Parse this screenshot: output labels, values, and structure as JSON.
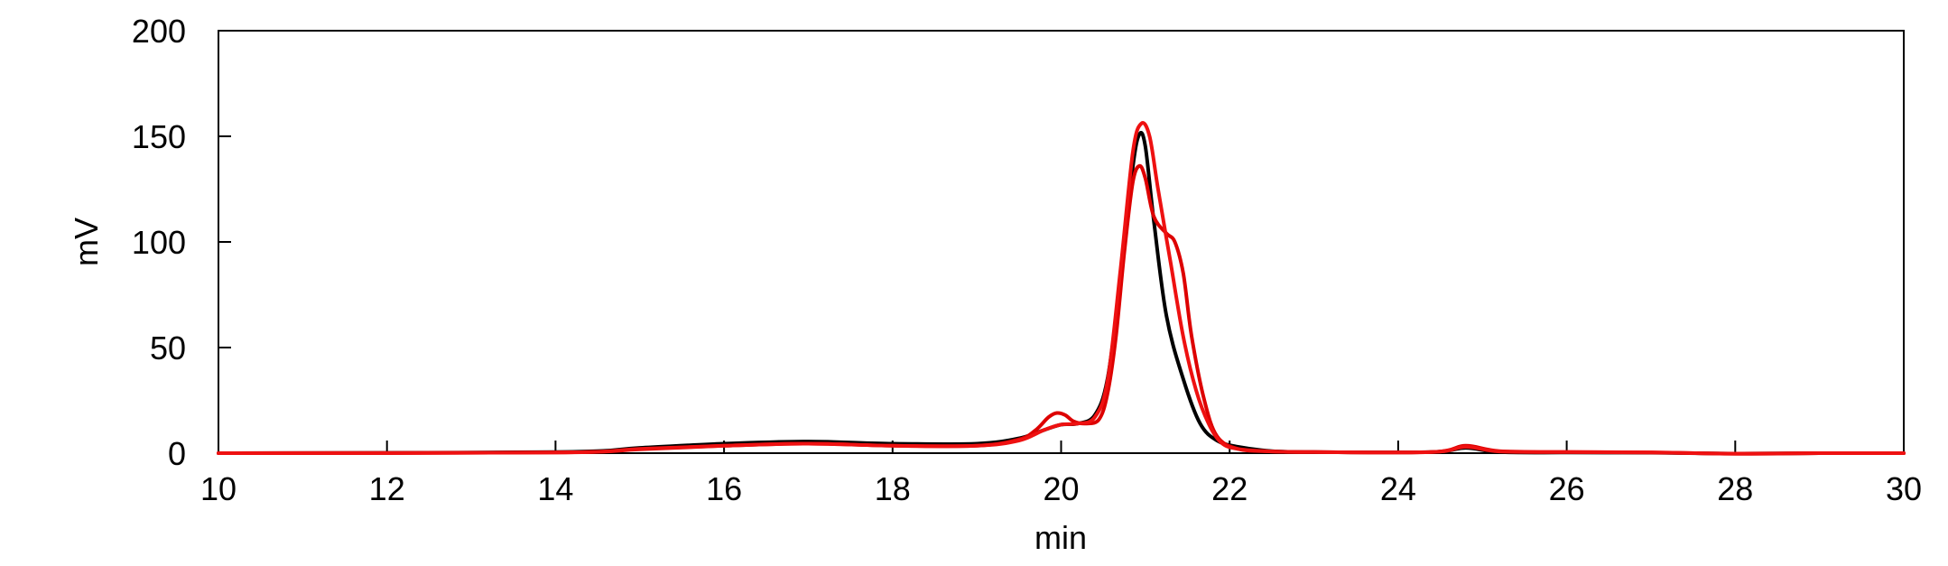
{
  "chart_data": {
    "type": "line",
    "xlabel": "min",
    "ylabel": "mV",
    "xlim": [
      10,
      30
    ],
    "ylim": [
      0,
      200
    ],
    "xticks": [
      10,
      12,
      14,
      16,
      18,
      20,
      22,
      24,
      26,
      28,
      30
    ],
    "yticks": [
      0,
      50,
      100,
      150,
      200
    ],
    "grid": false,
    "legend": "none",
    "series": [
      {
        "color": "#000000",
        "points": [
          [
            10,
            0
          ],
          [
            14,
            0.5
          ],
          [
            15,
            2.5
          ],
          [
            16,
            4.5
          ],
          [
            17,
            5.5
          ],
          [
            18,
            4.5
          ],
          [
            19,
            4.5
          ],
          [
            19.5,
            7
          ],
          [
            19.8,
            11
          ],
          [
            20,
            13.5
          ],
          [
            20.2,
            14
          ],
          [
            20.4,
            18
          ],
          [
            20.55,
            35
          ],
          [
            20.7,
            80
          ],
          [
            20.85,
            135
          ],
          [
            20.93,
            151
          ],
          [
            21.0,
            145
          ],
          [
            21.1,
            110
          ],
          [
            21.25,
            65
          ],
          [
            21.45,
            35
          ],
          [
            21.65,
            14
          ],
          [
            21.85,
            6
          ],
          [
            22.1,
            3
          ],
          [
            22.5,
            1
          ],
          [
            23,
            0.5
          ],
          [
            24.4,
            0.5
          ],
          [
            24.8,
            2.5
          ],
          [
            25.2,
            0.5
          ],
          [
            26,
            0.3
          ],
          [
            27,
            0.2
          ],
          [
            28,
            -0.2
          ],
          [
            29,
            0
          ],
          [
            30,
            0
          ]
        ]
      },
      {
        "color": "#dd0000",
        "points": [
          [
            10,
            0
          ],
          [
            14,
            0.3
          ],
          [
            15,
            1.8
          ],
          [
            16,
            3.5
          ],
          [
            17,
            4.5
          ],
          [
            18,
            3.5
          ],
          [
            19,
            3.5
          ],
          [
            19.5,
            6.5
          ],
          [
            19.7,
            11
          ],
          [
            19.85,
            17
          ],
          [
            19.95,
            19
          ],
          [
            20.05,
            18
          ],
          [
            20.15,
            15
          ],
          [
            20.3,
            14
          ],
          [
            20.45,
            16
          ],
          [
            20.55,
            28
          ],
          [
            20.65,
            55
          ],
          [
            20.75,
            95
          ],
          [
            20.85,
            128
          ],
          [
            20.93,
            136
          ],
          [
            21.0,
            130
          ],
          [
            21.1,
            112
          ],
          [
            21.25,
            104
          ],
          [
            21.35,
            100
          ],
          [
            21.45,
            85
          ],
          [
            21.55,
            55
          ],
          [
            21.7,
            25
          ],
          [
            21.85,
            8
          ],
          [
            22.1,
            2
          ],
          [
            22.5,
            0.8
          ],
          [
            23,
            0.5
          ],
          [
            24.4,
            0.5
          ],
          [
            24.8,
            3.5
          ],
          [
            25.2,
            1
          ],
          [
            26,
            0.5
          ],
          [
            27,
            0.4
          ],
          [
            28,
            -0.3
          ],
          [
            29,
            0
          ],
          [
            30,
            0
          ]
        ]
      },
      {
        "color": "#ee1111",
        "points": [
          [
            10,
            0
          ],
          [
            14,
            0.3
          ],
          [
            15,
            2
          ],
          [
            16,
            3.5
          ],
          [
            17,
            4.5
          ],
          [
            18,
            3.5
          ],
          [
            19,
            3.5
          ],
          [
            19.5,
            6
          ],
          [
            19.8,
            11
          ],
          [
            20,
            13.5
          ],
          [
            20.2,
            14
          ],
          [
            20.4,
            17
          ],
          [
            20.55,
            34
          ],
          [
            20.7,
            85
          ],
          [
            20.85,
            142
          ],
          [
            20.95,
            156
          ],
          [
            21.05,
            150
          ],
          [
            21.15,
            125
          ],
          [
            21.3,
            90
          ],
          [
            21.45,
            55
          ],
          [
            21.6,
            30
          ],
          [
            21.75,
            14
          ],
          [
            21.9,
            5
          ],
          [
            22.1,
            2
          ],
          [
            22.5,
            0.8
          ],
          [
            23,
            0.5
          ],
          [
            24.4,
            0.5
          ],
          [
            24.8,
            3
          ],
          [
            25.2,
            0.8
          ],
          [
            26,
            0.5
          ],
          [
            27,
            0.3
          ],
          [
            28,
            -0.2
          ],
          [
            29,
            0
          ],
          [
            30,
            0
          ]
        ]
      }
    ]
  }
}
